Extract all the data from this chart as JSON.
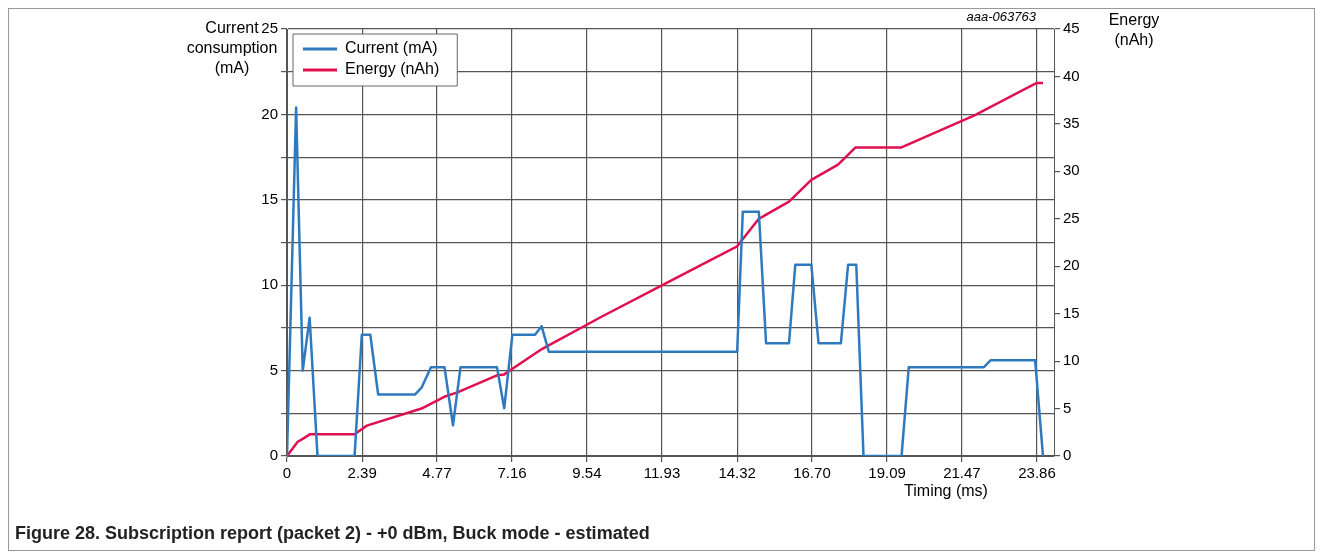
{
  "chart_data": {
    "type": "line",
    "title": "Figure 28. Subscription report (packet 2) - +0 dBm, Buck mode - estimated",
    "xlabel": "Timing (ms)",
    "ylabel": "Current consumption (mA)",
    "y2label": "Energy (nAh)",
    "annotations": [
      "aaa-063763"
    ],
    "series": [
      {
        "name": "Current (mA)",
        "color": "#2f7abf",
        "x": [
          0,
          0.29,
          0.5,
          0.72,
          0.97,
          2.15,
          2.38,
          2.65,
          2.9,
          4.07,
          4.28,
          4.58,
          5.01,
          5.28,
          5.52,
          6.68,
          6.91,
          7.17,
          7.89,
          8.1,
          8.33,
          14.32,
          14.5,
          15.01,
          15.24,
          15.97,
          16.17,
          16.68,
          16.91,
          17.62,
          17.85,
          18.11,
          18.34,
          19.55,
          19.78,
          22.17,
          22.38,
          23.8,
          24.05
        ],
        "values": [
          0,
          20.4,
          5,
          8.1,
          0,
          0,
          7.1,
          7.1,
          3.6,
          3.6,
          4,
          5.2,
          5.2,
          1.8,
          5.2,
          5.2,
          2.8,
          7.1,
          7.1,
          7.6,
          6.1,
          6.1,
          14.3,
          14.3,
          6.6,
          6.6,
          11.2,
          11.2,
          6.6,
          6.6,
          11.2,
          11.2,
          0,
          0,
          5.2,
          5.2,
          5.6,
          5.6,
          0
        ]
      },
      {
        "name": "Energy (nAh)",
        "color": "#e0104e",
        "axis": "y2",
        "x": [
          0,
          0.34,
          0.5,
          0.74,
          2.15,
          2.54,
          4.28,
          5.05,
          5.42,
          6.68,
          6.91,
          8.12,
          10.02,
          11.94,
          14.32,
          15.01,
          15.97,
          16.68,
          17.53,
          18.08,
          19.53,
          21.87,
          23.84,
          24.05
        ],
        "values": [
          0,
          1.5,
          1.8,
          2.3,
          2.3,
          3.2,
          5,
          6.3,
          6.7,
          8.5,
          8.6,
          11.3,
          14.7,
          18,
          22.1,
          25,
          26.8,
          29.1,
          30.7,
          32.5,
          32.5,
          35.9,
          39.3,
          39.3
        ]
      }
    ],
    "xlim": [
      0,
      24.4
    ],
    "xticks": [
      0,
      2.39,
      4.77,
      7.16,
      9.54,
      11.93,
      14.32,
      {
        "value": 16.7,
        "label": "16.70"
      },
      19.09,
      21.47,
      23.86
    ],
    "ylim": [
      0,
      25
    ],
    "yticks": [
      0,
      {
        "value": 2.5,
        "label": null
      },
      5,
      {
        "value": 7.5,
        "label": null
      },
      10,
      {
        "value": 12.5,
        "label": null
      },
      15,
      {
        "value": 17.5,
        "label": null
      },
      20,
      {
        "value": 22.5,
        "label": null
      },
      25
    ],
    "y2lim": [
      0,
      45
    ],
    "y2ticks": [
      0,
      5,
      10,
      15,
      20,
      25,
      30,
      35,
      40,
      45
    ],
    "grid": true,
    "legend": "top left",
    "marker": "none",
    "line_style": "solid"
  }
}
